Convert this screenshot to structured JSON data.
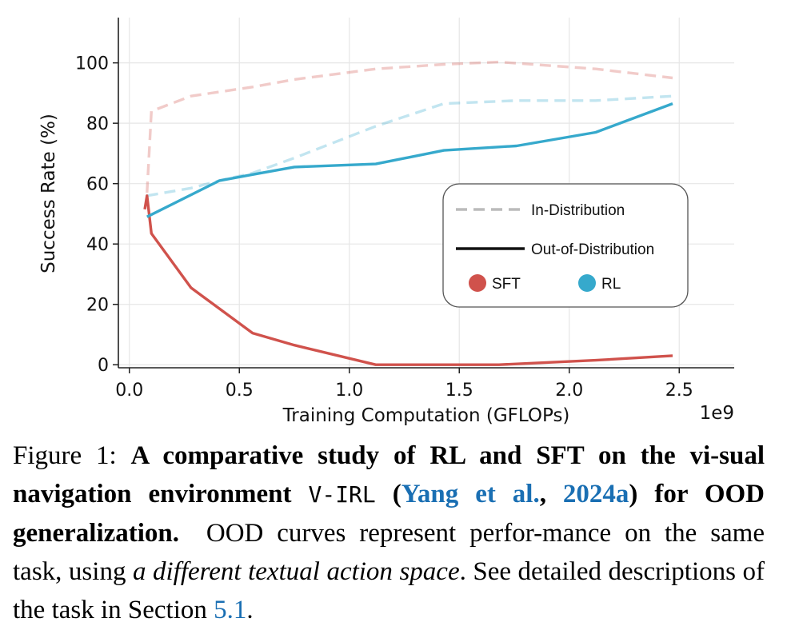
{
  "chart_data": {
    "type": "line",
    "xlabel": "Training Computation (GFLOPs)",
    "x_offset_label": "1e9",
    "ylabel": "Success Rate (%)",
    "xlim": [
      -0.05,
      2.75
    ],
    "ylim": [
      -1,
      115
    ],
    "xticks": [
      0.0,
      0.5,
      1.0,
      1.5,
      2.0,
      2.5
    ],
    "xtick_labels": [
      "0.0",
      "0.5",
      "1.0",
      "1.5",
      "2.0",
      "2.5"
    ],
    "yticks": [
      0,
      20,
      40,
      60,
      80,
      100
    ],
    "ytick_labels": [
      "0",
      "20",
      "40",
      "60",
      "80",
      "100"
    ],
    "grid": true,
    "legend": {
      "placement": "center-right",
      "style_entries": [
        {
          "label": "In-Distribution",
          "style": "dashed"
        },
        {
          "label": "Out-of-Distribution",
          "style": "solid"
        }
      ],
      "method_entries": [
        {
          "label": "SFT",
          "color": "#d0524c"
        },
        {
          "label": "RL",
          "color": "#36a9cc"
        }
      ]
    },
    "series": [
      {
        "method": "SFT",
        "distribution": "In-Distribution",
        "style": "dashed",
        "color": "#d0524c",
        "x": [
          0.08,
          0.1,
          0.28,
          0.56,
          0.75,
          1.12,
          1.43,
          1.68,
          2.12,
          2.47
        ],
        "y": [
          57,
          84,
          89,
          92,
          94.5,
          98,
          99.5,
          100.3,
          98,
          95
        ]
      },
      {
        "method": "SFT",
        "distribution": "Out-of-Distribution",
        "style": "solid",
        "color": "#d0524c",
        "x": [
          0.07,
          0.08,
          0.1,
          0.28,
          0.56,
          0.75,
          1.12,
          1.43,
          1.68,
          2.12,
          2.47
        ],
        "y": [
          51.5,
          56,
          43.5,
          25.5,
          10.5,
          6.5,
          0,
          0,
          0,
          1.5,
          3
        ]
      },
      {
        "method": "RL",
        "distribution": "In-Distribution",
        "style": "dashed",
        "color": "#36a9cc",
        "x": [
          0.08,
          0.28,
          0.41,
          0.56,
          0.75,
          1.12,
          1.43,
          1.76,
          2.12,
          2.47
        ],
        "y": [
          56,
          58.5,
          61,
          63.5,
          68.5,
          79,
          86.5,
          87.5,
          87.5,
          89
        ]
      },
      {
        "method": "RL",
        "distribution": "Out-of-Distribution",
        "style": "solid",
        "color": "#36a9cc",
        "x": [
          0.08,
          0.41,
          0.56,
          0.75,
          1.12,
          1.43,
          1.76,
          2.12,
          2.47
        ],
        "y": [
          49,
          61,
          63,
          65.5,
          66.5,
          71,
          72.5,
          77,
          86.5
        ]
      }
    ]
  },
  "caption": {
    "prefix": "Figure 1: ",
    "bold_1": "A comparative study of RL and SFT on the vi-sual navigation environment",
    "mono": "V-IRL",
    "open_paren": "(",
    "cite_author": "Yang et al.",
    "comma": ", ",
    "cite_year": "2024a",
    "close_paren": ")",
    "bold_2": "for OOD generalization.",
    "text_1": "OOD curves represent perfor-mance on the same task, using",
    "italic": "a different textual action space",
    "text_2": ". See detailed descriptions of the task in Section",
    "section_ref": "5.1",
    "period": "."
  }
}
